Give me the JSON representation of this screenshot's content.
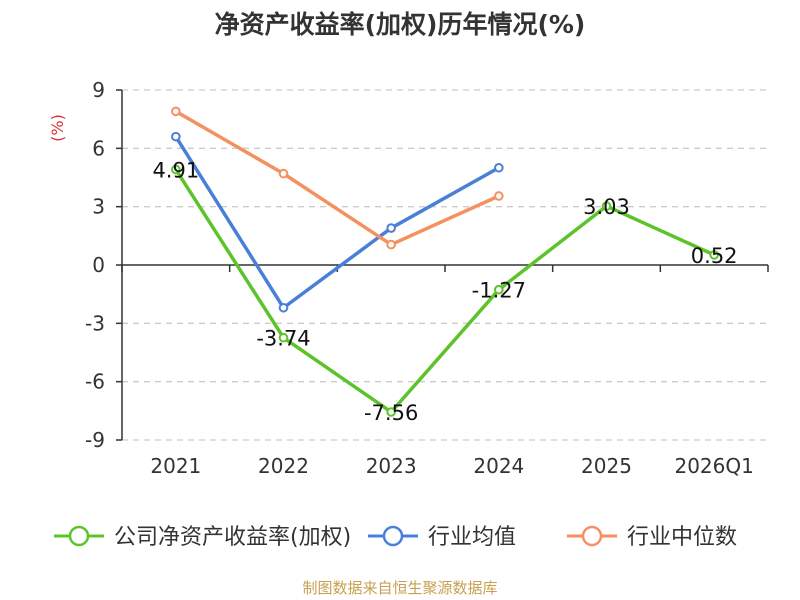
{
  "chart_data": {
    "type": "line",
    "title": "净资产收益率(加权)历年情况(%)",
    "ylabel": "(%)",
    "ylim": [
      -9,
      9
    ],
    "yticks": [
      9,
      6,
      3,
      0,
      -3,
      -6,
      -9
    ],
    "categories": [
      "2021",
      "2022",
      "2023",
      "2024",
      "2025",
      "2026Q1"
    ],
    "grid": true,
    "legend_position": "bottom",
    "series": [
      {
        "name": "公司净资产收益率(加权)",
        "color": "#5cc42a",
        "values": [
          4.91,
          -3.74,
          -7.56,
          -1.27,
          3.03,
          0.52
        ],
        "labels": [
          "4.91",
          "-3.74",
          "-7.56",
          "-1.27",
          "3.03",
          "0.52"
        ]
      },
      {
        "name": "行业均值",
        "color": "#4a7fd9",
        "values": [
          6.6,
          -2.2,
          1.9,
          5.0,
          null,
          null
        ]
      },
      {
        "name": "行业中位数",
        "color": "#f59060",
        "values": [
          7.9,
          4.7,
          1.05,
          3.55,
          null,
          null
        ]
      }
    ],
    "source": "制图数据来自恒生聚源数据库"
  }
}
